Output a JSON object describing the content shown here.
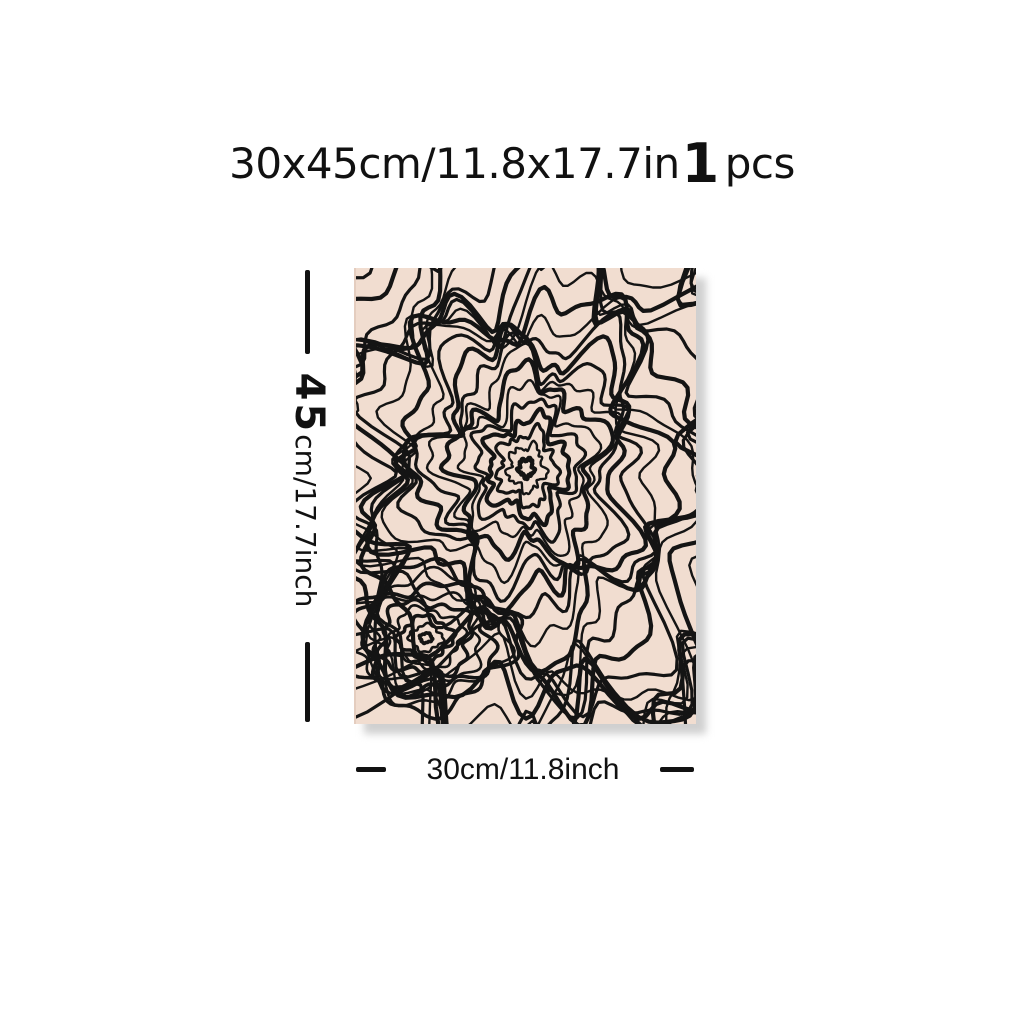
{
  "title": {
    "size_text": "30x45cm/11.8x17.7in",
    "count": "1",
    "count_unit": "pcs"
  },
  "product": {
    "pattern": "black-wavy-contour-lines",
    "background_color": "#f1ddd0",
    "line_color": "#141414"
  },
  "dimensions": {
    "height_big": "45",
    "height_rest": "cm/17.7inch",
    "width_text": "30cm/11.8inch"
  }
}
